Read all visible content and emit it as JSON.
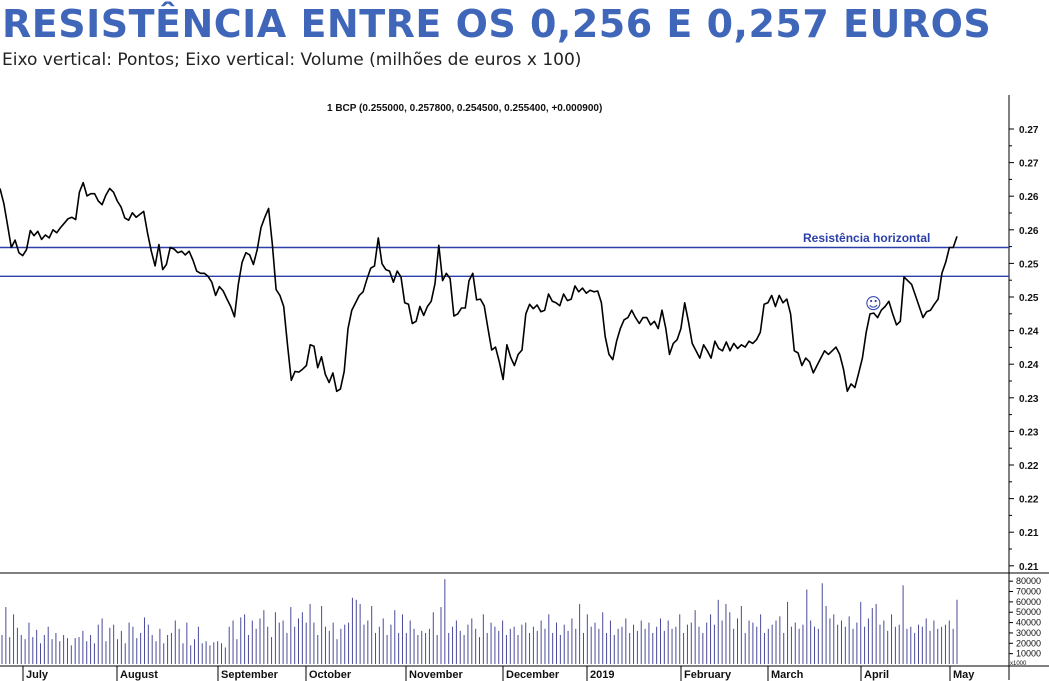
{
  "title": "RESISTÊNCIA ENTRE OS 0,256 E 0,257 EUROS",
  "subtitle": "Eixo vertical: Pontos; Eixo vertical: Volume (milhões de euros x 100)",
  "colors": {
    "title": "#3f66b8",
    "resistance": "#2b3fa8",
    "price": "#000000",
    "volume": "#4a4a9a"
  },
  "chart_data": [
    {
      "type": "line",
      "series_info": "1 BCP (0.255000, 0.257800, 0.254500, 0.255400, +0.000900)",
      "y_ticks": [
        "0.27",
        "0.27",
        "0.26",
        "0.26",
        "0.25",
        "0.25",
        "0.24",
        "0.24",
        "0.23",
        "0.23",
        "0.22",
        "0.22",
        "0.21",
        "0.21"
      ],
      "ylim": [
        0.2095,
        0.2735
      ],
      "months": [
        "July",
        "August",
        "September",
        "October",
        "November",
        "December",
        "2019",
        "February",
        "March",
        "April",
        "May"
      ],
      "resistance_lines": [
        0.2535,
        0.2496
      ],
      "annotation": "Resistência horizontal",
      "smiley": "☺",
      "values": [
        0.2615,
        0.2595,
        0.2565,
        0.2535,
        0.2545,
        0.2528,
        0.2524,
        0.2532,
        0.2558,
        0.2551,
        0.2557,
        0.2546,
        0.2552,
        0.2548,
        0.2559,
        0.2555,
        0.2562,
        0.2568,
        0.2574,
        0.2576,
        0.2573,
        0.261,
        0.2623,
        0.2605,
        0.2608,
        0.2608,
        0.2598,
        0.2593,
        0.2606,
        0.2615,
        0.261,
        0.2598,
        0.259,
        0.2575,
        0.2572,
        0.2582,
        0.2576,
        0.258,
        0.2584,
        0.2555,
        0.253,
        0.251,
        0.2539,
        0.2505,
        0.2512,
        0.2535,
        0.2533,
        0.2528,
        0.253,
        0.2525,
        0.253,
        0.2518,
        0.2503,
        0.25,
        0.25,
        0.2496,
        0.2488,
        0.247,
        0.2482,
        0.2476,
        0.2465,
        0.2455,
        0.2441,
        0.2485,
        0.2515,
        0.2528,
        0.2525,
        0.2512,
        0.2532,
        0.2562,
        0.2576,
        0.2588,
        0.254,
        0.2478,
        0.247,
        0.2455,
        0.2403,
        0.2355,
        0.2367,
        0.2366,
        0.237,
        0.2375,
        0.2403,
        0.2401,
        0.2372,
        0.2387,
        0.2363,
        0.2352,
        0.2365,
        0.234,
        0.2343,
        0.2367,
        0.2425,
        0.245,
        0.246,
        0.247,
        0.2475,
        0.2492,
        0.2507,
        0.251,
        0.2548,
        0.2513,
        0.2505,
        0.2503,
        0.2488,
        0.2503,
        0.2495,
        0.246,
        0.2458,
        0.2432,
        0.2435,
        0.2455,
        0.2443,
        0.2455,
        0.2462,
        0.2486,
        0.2538,
        0.249,
        0.25,
        0.2493,
        0.2442,
        0.2445,
        0.2453,
        0.2453,
        0.249,
        0.25,
        0.2464,
        0.2465,
        0.2456,
        0.2425,
        0.2396,
        0.24,
        0.238,
        0.2356,
        0.2403,
        0.2386,
        0.2375,
        0.239,
        0.2396,
        0.2445,
        0.2458,
        0.2452,
        0.2457,
        0.2448,
        0.245,
        0.2472,
        0.2462,
        0.246,
        0.2456,
        0.2472,
        0.2463,
        0.2465,
        0.2483,
        0.2475,
        0.248,
        0.2473,
        0.2477,
        0.2475,
        0.2476,
        0.246,
        0.2414,
        0.239,
        0.2383,
        0.2408,
        0.2425,
        0.2437,
        0.244,
        0.245,
        0.244,
        0.2432,
        0.244,
        0.244,
        0.243,
        0.2435,
        0.2425,
        0.245,
        0.2426,
        0.239,
        0.2405,
        0.241,
        0.2425,
        0.246,
        0.2435,
        0.2405,
        0.2395,
        0.2385,
        0.2403,
        0.2395,
        0.2385,
        0.2408,
        0.2398,
        0.2395,
        0.2407,
        0.2395,
        0.2405,
        0.2398,
        0.2403,
        0.24,
        0.2408,
        0.2405,
        0.241,
        0.242,
        0.2458,
        0.246,
        0.247,
        0.2455,
        0.247,
        0.246,
        0.2465,
        0.2445,
        0.2395,
        0.2392,
        0.2375,
        0.2385,
        0.238,
        0.2365,
        0.2375,
        0.2385,
        0.2395,
        0.239,
        0.2395,
        0.24,
        0.239,
        0.237,
        0.234,
        0.235,
        0.2345,
        0.2365,
        0.2385,
        0.242,
        0.2445,
        0.2446,
        0.244,
        0.245,
        0.2455,
        0.2462,
        0.2445,
        0.243,
        0.2435,
        0.2495,
        0.249,
        0.2485,
        0.247,
        0.2455,
        0.244,
        0.2448,
        0.245,
        0.2458,
        0.2465,
        0.25,
        0.2515,
        0.2535,
        0.2535,
        0.255
      ]
    },
    {
      "type": "bar",
      "name": "Volume",
      "y_ticks": [
        "80000",
        "70000",
        "60000",
        "50000",
        "40000",
        "30000",
        "20000",
        "10000"
      ],
      "ylim": [
        0,
        85000
      ],
      "axis_note": "x1000",
      "values": [
        28000,
        55000,
        26000,
        48000,
        35000,
        28000,
        24000,
        40000,
        26000,
        33000,
        20000,
        28000,
        36000,
        24000,
        30000,
        22000,
        28000,
        25000,
        18000,
        25000,
        26000,
        32000,
        22000,
        28000,
        20000,
        38000,
        44000,
        22000,
        35000,
        38000,
        24000,
        32000,
        20000,
        40000,
        36000,
        25000,
        30000,
        45000,
        38000,
        28000,
        22000,
        34000,
        20000,
        28000,
        30000,
        42000,
        34000,
        20000,
        40000,
        18000,
        24000,
        36000,
        20000,
        22000,
        18000,
        21000,
        22000,
        20000,
        16000,
        36000,
        42000,
        24000,
        45000,
        48000,
        28000,
        42000,
        34000,
        44000,
        52000,
        36000,
        26000,
        50000,
        40000,
        42000,
        30000,
        55000,
        36000,
        44000,
        50000,
        40000,
        58000,
        40000,
        28000,
        56000,
        36000,
        32000,
        40000,
        24000,
        34000,
        38000,
        40000,
        64000,
        62000,
        58000,
        38000,
        42000,
        56000,
        30000,
        36000,
        44000,
        28000,
        38000,
        52000,
        30000,
        48000,
        30000,
        42000,
        34000,
        28000,
        32000,
        30000,
        34000,
        50000,
        28000,
        55000,
        82000,
        30000,
        36000,
        42000,
        32000,
        28000,
        38000,
        44000,
        34000,
        26000,
        48000,
        30000,
        40000,
        36000,
        32000,
        42000,
        28000,
        34000,
        36000,
        28000,
        38000,
        40000,
        30000,
        36000,
        32000,
        42000,
        34000,
        48000,
        30000,
        40000,
        28000,
        38000,
        32000,
        44000,
        34000,
        58000,
        30000,
        48000,
        36000,
        40000,
        34000,
        50000,
        30000,
        42000,
        28000,
        34000,
        36000,
        44000,
        30000,
        38000,
        32000,
        42000,
        34000,
        40000,
        30000,
        36000,
        44000,
        32000,
        42000,
        34000,
        36000,
        48000,
        30000,
        38000,
        40000,
        52000,
        36000,
        30000,
        40000,
        48000,
        38000,
        62000,
        42000,
        58000,
        50000,
        34000,
        44000,
        56000,
        30000,
        42000,
        40000,
        36000,
        48000,
        30000,
        34000,
        38000,
        42000,
        46000,
        30000,
        60000,
        36000,
        40000,
        34000,
        38000,
        72000,
        42000,
        36000,
        34000,
        78000,
        56000,
        44000,
        48000,
        38000,
        42000,
        36000,
        46000,
        34000,
        40000,
        60000,
        36000,
        44000,
        54000,
        58000,
        38000,
        42000,
        32000,
        48000,
        36000,
        38000,
        76000,
        34000,
        36000,
        30000,
        38000,
        36000,
        44000,
        32000,
        42000,
        34000,
        36000,
        38000,
        42000,
        34000,
        62000
      ]
    }
  ]
}
